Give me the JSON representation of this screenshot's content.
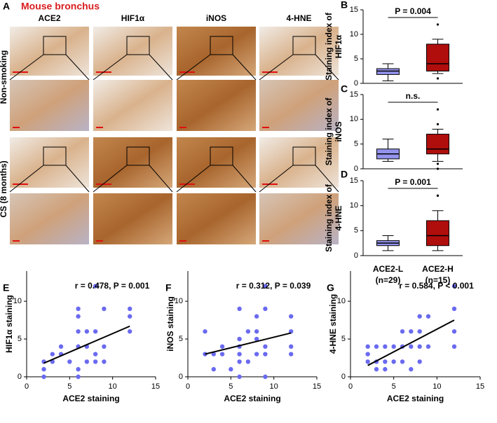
{
  "panel_a": {
    "panel": "A",
    "title": "Mouse bronchus",
    "columns": [
      "ACE2",
      "HIF1α",
      "iNOS",
      "4-HNE"
    ],
    "rows": [
      "Non-smoking",
      "CS (8 months)"
    ]
  },
  "chart_data": [
    {
      "type": "box",
      "panel": "B",
      "ylabel": [
        "Staining index of",
        "HIF1α"
      ],
      "categories": [
        null,
        null
      ],
      "ylim": [
        0,
        15
      ],
      "yticks": [
        0,
        5,
        10,
        15
      ],
      "annotation": "P = 0.004",
      "boxes": [
        {
          "color": "#9393ec",
          "min": 0.5,
          "q1": 1.8,
          "median": 2.5,
          "q3": 3,
          "max": 4,
          "outliers": []
        },
        {
          "color": "#b00d0d",
          "min": 2,
          "q1": 2.5,
          "median": 4,
          "q3": 8,
          "max": 9,
          "outliers": [
            12,
            1
          ]
        }
      ]
    },
    {
      "type": "box",
      "panel": "C",
      "ylabel": [
        "Staining index of",
        "iNOS"
      ],
      "categories": [
        null,
        null
      ],
      "ylim": [
        0,
        15
      ],
      "yticks": [
        0,
        5,
        10,
        15
      ],
      "annotation": "n.s.",
      "boxes": [
        {
          "color": "#9393ec",
          "min": 1.5,
          "q1": 2,
          "median": 3,
          "q3": 4,
          "max": 6,
          "outliers": []
        },
        {
          "color": "#b00d0d",
          "min": 1.5,
          "q1": 3,
          "median": 4,
          "q3": 7,
          "max": 8,
          "outliers": [
            12,
            9,
            1,
            0
          ]
        }
      ]
    },
    {
      "type": "box",
      "panel": "D",
      "ylabel": [
        "Staining index of",
        "4-HNE"
      ],
      "categories": [
        "ACE2-L",
        "ACE2-H"
      ],
      "category_notes": [
        "(n=29)",
        "(n=15)"
      ],
      "ylim": [
        0,
        15
      ],
      "yticks": [
        0,
        5,
        10,
        15
      ],
      "annotation": "P = 0.001",
      "boxes": [
        {
          "color": "#9393ec",
          "min": 1,
          "q1": 2,
          "median": 2.5,
          "q3": 3,
          "max": 4,
          "outliers": []
        },
        {
          "color": "#b00d0d",
          "min": 1,
          "q1": 2,
          "median": 4,
          "q3": 7,
          "max": 9,
          "outliers": [
            12,
            12
          ]
        }
      ]
    },
    {
      "type": "scatter",
      "panel": "E",
      "xlabel": "ACE2  staining",
      "ylabel": "HIF1α  staining",
      "annotation": "r = 0.478, P = 0.001",
      "color": "#6a6af0",
      "xlim": [
        0,
        15
      ],
      "xticks": [
        0,
        5,
        10,
        15
      ],
      "ylim": [
        0,
        14
      ],
      "yticks": [
        0,
        5,
        10
      ],
      "x": [
        2,
        2,
        2,
        3,
        3,
        4,
        4,
        5,
        6,
        6,
        6,
        6,
        6,
        6,
        7,
        7,
        7,
        8,
        8,
        8,
        8,
        9,
        9,
        9,
        12,
        12,
        12
      ],
      "y": [
        0,
        1,
        2,
        2,
        3,
        3,
        4,
        2,
        0,
        1,
        4,
        6,
        8,
        9,
        2,
        4,
        6,
        2,
        3,
        6,
        12,
        2,
        4,
        9,
        6,
        8,
        9
      ],
      "trendline": {
        "x": [
          2,
          12
        ],
        "y": [
          1.8,
          6.7
        ]
      }
    },
    {
      "type": "scatter",
      "panel": "F",
      "xlabel": "ACE2  staining",
      "ylabel": "iNOS staining",
      "annotation": "r = 0.312, P = 0.039",
      "color": "#6a6af0",
      "xlim": [
        0,
        15
      ],
      "xticks": [
        0,
        5,
        10,
        15
      ],
      "ylim": [
        0,
        14
      ],
      "yticks": [
        0,
        5,
        10
      ],
      "x": [
        2,
        2,
        3,
        3,
        4,
        4,
        5,
        6,
        6,
        6,
        6,
        6,
        6,
        7,
        7,
        8,
        8,
        8,
        8,
        9,
        9,
        9,
        9,
        9,
        12,
        12,
        12,
        12
      ],
      "y": [
        3,
        6,
        1,
        3,
        3,
        4,
        1,
        0,
        2,
        3,
        4,
        5,
        9,
        2,
        6,
        3,
        5,
        6,
        8,
        0,
        3,
        4,
        9,
        12,
        3,
        4,
        6,
        8
      ],
      "trendline": {
        "x": [
          2,
          12
        ],
        "y": [
          3,
          5.8
        ]
      }
    },
    {
      "type": "scatter",
      "panel": "G",
      "xlabel": "ACE2  staining",
      "ylabel": "4-HNE  staining",
      "annotation": "r = 0.584, P < 0.001",
      "color": "#6a6af0",
      "xlim": [
        0,
        15
      ],
      "xticks": [
        0,
        5,
        10,
        15
      ],
      "ylim": [
        0,
        14
      ],
      "yticks": [
        0,
        5,
        10
      ],
      "x": [
        2,
        2,
        2,
        3,
        3,
        3,
        4,
        4,
        4,
        5,
        5,
        6,
        6,
        6,
        7,
        7,
        7,
        8,
        8,
        8,
        8,
        9,
        9,
        12,
        12,
        12,
        12
      ],
      "y": [
        2,
        3,
        4,
        1,
        2,
        4,
        1,
        2,
        4,
        2,
        4,
        2,
        4,
        6,
        1,
        4,
        6,
        2,
        4,
        6,
        8,
        4,
        8,
        4,
        6,
        9,
        12
      ],
      "trendline": {
        "x": [
          2,
          12
        ],
        "y": [
          1.5,
          7.5
        ]
      }
    }
  ]
}
